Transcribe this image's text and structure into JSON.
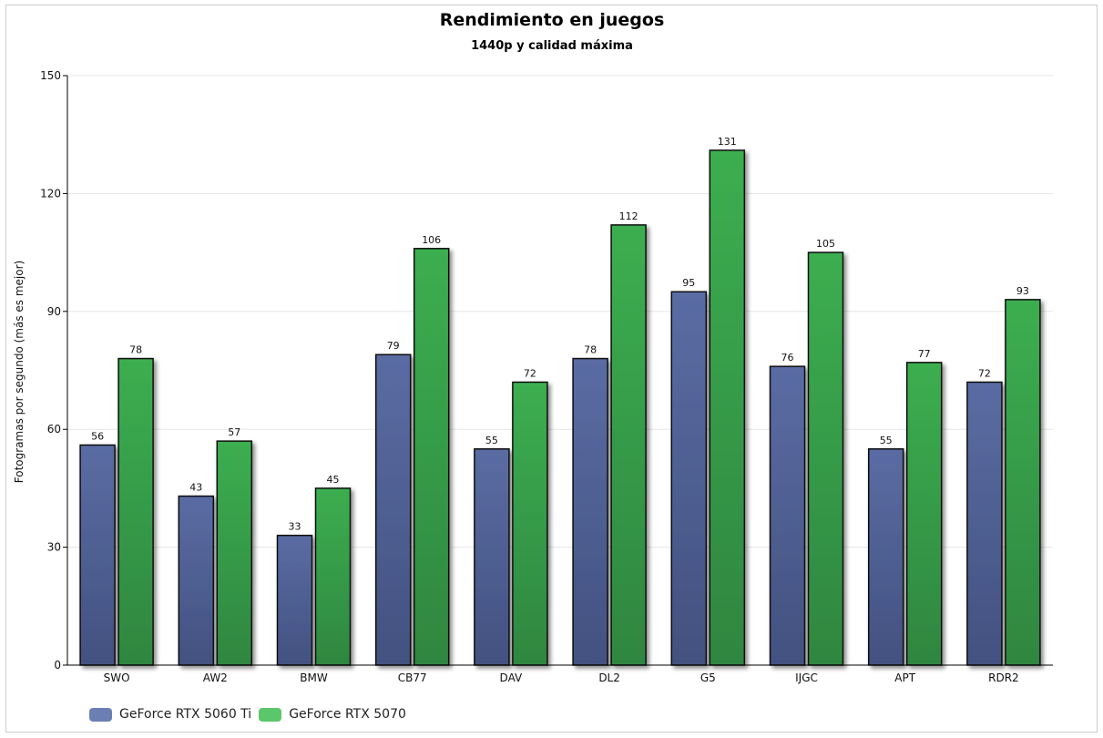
{
  "chart_data": {
    "type": "bar",
    "title": "Rendimiento en juegos",
    "subtitle": "1440p y calidad máxima",
    "xlabel": "",
    "ylabel": "Fotogramas por segundo (más es mejor)",
    "ylim": [
      0,
      150
    ],
    "yticks": [
      0,
      30,
      60,
      90,
      120,
      150
    ],
    "grid": true,
    "legend_position": "bottom-left",
    "categories": [
      "SWO",
      "AW2",
      "BMW",
      "CB77",
      "DAV",
      "DL2",
      "G5",
      "IJGC",
      "APT",
      "RDR2"
    ],
    "series": [
      {
        "name": "GeForce RTX 5060 Ti",
        "color": "#6b7fb5",
        "values": [
          56,
          43,
          33,
          79,
          55,
          78,
          95,
          76,
          55,
          72
        ]
      },
      {
        "name": "GeForce RTX 5070",
        "color": "#4cc062",
        "values": [
          78,
          57,
          45,
          106,
          72,
          112,
          131,
          105,
          77,
          93
        ]
      }
    ]
  }
}
